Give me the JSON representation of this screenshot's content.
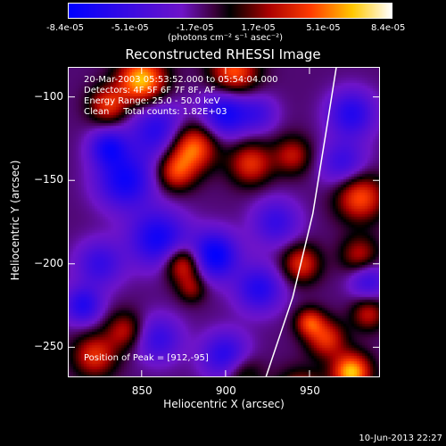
{
  "colorbar": {
    "ticks": [
      "-8.4e-05",
      "-5.1e-05",
      "-1.7e-05",
      "1.7e-05",
      "5.1e-05",
      "8.4e-05"
    ],
    "unit_line": "(photons cm⁻² s⁻¹ asec⁻²)"
  },
  "chart_data": {
    "type": "heatmap",
    "title": "Reconstructed RHESSI Image",
    "xlabel": "Heliocentric X (arcsec)",
    "ylabel": "Heliocentric Y (arcsec)",
    "xlim": [
      806,
      992
    ],
    "ylim": [
      -268,
      -82
    ],
    "x_ticks": [
      850,
      900,
      950
    ],
    "y_ticks": [
      -100,
      -150,
      -200,
      -250
    ],
    "value_range": [
      -8.4e-05,
      8.4e-05
    ],
    "colormap": "blue-purple-black-red-yellow-white",
    "peak_position": [
      912,
      -95
    ],
    "limb_curve": [
      [
        924,
        -268
      ],
      [
        940,
        -220
      ],
      [
        952,
        -170
      ],
      [
        960,
        -120
      ],
      [
        966,
        -82
      ]
    ],
    "blobs": [
      [
        850,
        -90,
        8e-05,
        10
      ],
      [
        830,
        -105,
        5e-05,
        8
      ],
      [
        905,
        -85,
        6e-05,
        10
      ],
      [
        880,
        -130,
        7e-05,
        10
      ],
      [
        870,
        -145,
        5e-05,
        8
      ],
      [
        915,
        -140,
        5e-05,
        9
      ],
      [
        940,
        -135,
        4e-05,
        8
      ],
      [
        980,
        -160,
        6e-05,
        10
      ],
      [
        875,
        -200,
        6e-05,
        8
      ],
      [
        822,
        -255,
        5e-05,
        9
      ],
      [
        840,
        -240,
        4e-05,
        8
      ],
      [
        945,
        -280,
        6e-05,
        10
      ],
      [
        960,
        -245,
        5e-05,
        8
      ],
      [
        945,
        -200,
        5e-05,
        8
      ],
      [
        980,
        -195,
        4e-05,
        8
      ],
      [
        950,
        -235,
        5e-05,
        6
      ],
      [
        975,
        -265,
        8e-05,
        8
      ],
      [
        910,
        -265,
        3e-05,
        8
      ],
      [
        985,
        -230,
        4e-05,
        7
      ],
      [
        880,
        -215,
        3e-05,
        6
      ],
      [
        860,
        -120,
        -5e-05,
        12
      ],
      [
        900,
        -110,
        -6e-05,
        10
      ],
      [
        840,
        -150,
        -6e-05,
        12
      ],
      [
        893,
        -195,
        -7e-05,
        10
      ],
      [
        860,
        -185,
        -6e-05,
        12
      ],
      [
        920,
        -215,
        -5e-05,
        10
      ],
      [
        860,
        -245,
        -4e-05,
        10
      ],
      [
        900,
        -255,
        -5e-05,
        10
      ],
      [
        975,
        -110,
        -5e-05,
        10
      ],
      [
        970,
        -140,
        -4e-05,
        10
      ],
      [
        825,
        -200,
        -4e-05,
        10
      ],
      [
        830,
        -130,
        -5e-05,
        8
      ],
      [
        930,
        -175,
        -4e-05,
        10
      ],
      [
        985,
        -210,
        -4e-05,
        8
      ],
      [
        920,
        -110,
        -3e-05,
        8
      ],
      [
        815,
        -225,
        -5e-05,
        8
      ]
    ]
  },
  "info": {
    "line1": "20-Mar-2003 05:53:52.000 to 05:54:04.000",
    "line2": "Detectors: 4F 5F 6F 7F 8F, AF",
    "line3": "Energy Range: 25.0 - 50.0 keV",
    "line4": "Clean     Total counts: 1.82E+03",
    "peak": "Position of Peak = [912,-95]"
  },
  "footer": {
    "date": "10-Jun-2013 22:27"
  }
}
